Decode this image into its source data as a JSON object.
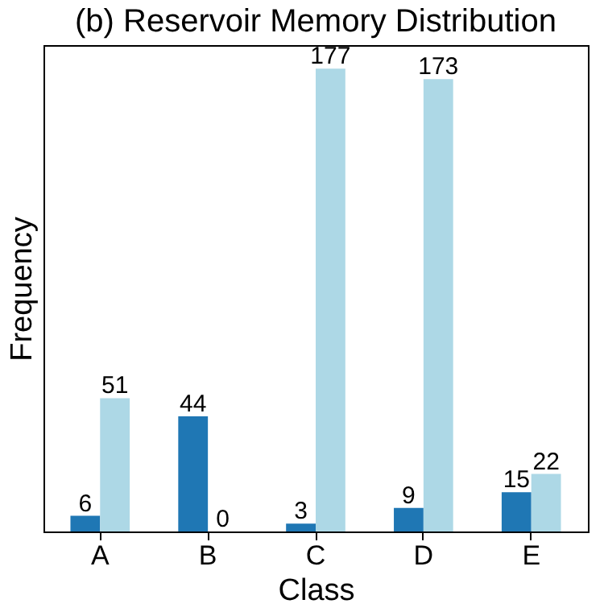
{
  "chart_data": {
    "type": "bar",
    "title": "(b) Reservoir Memory Distribution",
    "xlabel": "Class",
    "ylabel": "Frequency",
    "categories": [
      "A",
      "B",
      "C",
      "D",
      "E"
    ],
    "series": [
      {
        "color": "#1f77b4",
        "values": [
          6,
          44,
          3,
          9,
          15
        ]
      },
      {
        "color": "#add8e6",
        "values": [
          51,
          0,
          177,
          173,
          22
        ]
      }
    ],
    "ylim": [
      0,
      186
    ],
    "tick_labels": "x",
    "data_labels": true,
    "grid": false,
    "legend": false
  }
}
